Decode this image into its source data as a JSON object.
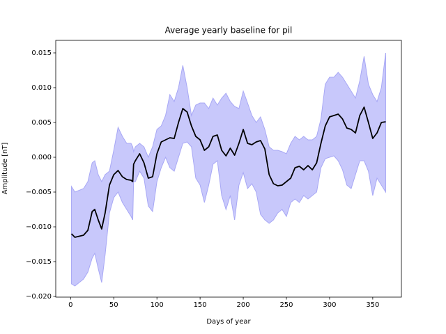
{
  "chart_data": {
    "type": "line_band",
    "title": "Average yearly baseline for pil",
    "xlabel": "Days of year",
    "ylabel": "Amplitude [nT]",
    "xlim": [
      -17.2,
      383.2
    ],
    "ylim": [
      -0.0201,
      0.0168
    ],
    "xticks": [
      0,
      50,
      100,
      150,
      200,
      250,
      300,
      350
    ],
    "yticks": [
      {
        "value": -0.02,
        "label": "−0.020"
      },
      {
        "value": -0.015,
        "label": "−0.015"
      },
      {
        "value": -0.01,
        "label": "−0.010"
      },
      {
        "value": -0.005,
        "label": "−0.005"
      },
      {
        "value": 0,
        "label": "0.000"
      },
      {
        "value": 0.005,
        "label": "0.005"
      },
      {
        "value": 0.01,
        "label": "0.010"
      },
      {
        "value": 0.015,
        "label": "0.015"
      }
    ],
    "x": [
      1,
      5,
      15,
      20,
      25,
      28,
      32,
      36,
      40,
      45,
      50,
      55,
      60,
      65,
      70,
      72,
      73,
      75,
      80,
      85,
      90,
      95,
      100,
      105,
      110,
      115,
      120,
      125,
      130,
      135,
      140,
      145,
      150,
      155,
      160,
      165,
      170,
      175,
      180,
      185,
      190,
      195,
      200,
      205,
      210,
      215,
      220,
      225,
      230,
      235,
      240,
      245,
      250,
      255,
      260,
      265,
      270,
      275,
      280,
      285,
      290,
      295,
      300,
      305,
      310,
      315,
      320,
      325,
      330,
      335,
      340,
      345,
      350,
      355,
      360,
      365
    ],
    "values": [
      -0.011,
      -0.0115,
      -0.0112,
      -0.0105,
      -0.0078,
      -0.0075,
      -0.009,
      -0.0103,
      -0.008,
      -0.004,
      -0.0025,
      -0.0019,
      -0.0028,
      -0.0032,
      -0.0033,
      -0.0035,
      -0.001,
      -0.0005,
      0.0005,
      -0.0008,
      -0.003,
      -0.0028,
      0.0005,
      0.0022,
      0.0025,
      0.0028,
      0.0027,
      0.005,
      0.007,
      0.0065,
      0.0045,
      0.003,
      0.0025,
      0.001,
      0.0015,
      0.003,
      0.0032,
      0.001,
      0.0002,
      0.0013,
      0.0003,
      0.002,
      0.004,
      0.002,
      0.0018,
      0.0022,
      0.0024,
      0.0012,
      -0.0025,
      -0.0038,
      -0.0041,
      -0.004,
      -0.0035,
      -0.003,
      -0.0015,
      -0.0013,
      -0.0018,
      -0.0012,
      -0.0018,
      -0.0008,
      0.002,
      0.0045,
      0.0058,
      0.006,
      0.0062,
      0.0055,
      0.0042,
      0.004,
      0.0035,
      0.006,
      0.0072,
      0.005,
      0.0027,
      0.0035,
      0.005,
      0.0051
    ],
    "color": "#000000",
    "band": {
      "color": "#c8c8fb",
      "edge_color": "#a8a8f5",
      "upper": [
        -0.0042,
        -0.005,
        -0.0045,
        -0.0035,
        -0.0008,
        -0.0005,
        -0.0025,
        -0.0035,
        -0.0025,
        -0.002,
        0.001,
        0.0043,
        0.003,
        0.002,
        0.002,
        0.0015,
        0.0008,
        0.0015,
        0.002,
        0.0015,
        0.0,
        0.0015,
        0.004,
        0.0045,
        0.006,
        0.009,
        0.008,
        0.01,
        0.0132,
        0.01,
        0.006,
        0.0075,
        0.0078,
        0.0078,
        0.007,
        0.0085,
        0.0075,
        0.0085,
        0.0092,
        0.008,
        0.0073,
        0.007,
        0.0095,
        0.0078,
        0.006,
        0.005,
        0.0058,
        0.004,
        0.0015,
        0.001,
        0.001,
        0.0008,
        0.0005,
        0.002,
        0.003,
        0.0025,
        0.003,
        0.0025,
        0.0025,
        0.003,
        0.0055,
        0.0105,
        0.0115,
        0.0115,
        0.0122,
        0.0115,
        0.0105,
        0.0095,
        0.0085,
        0.011,
        0.0145,
        0.0105,
        0.009,
        0.008,
        0.01,
        0.015
      ],
      "lower": [
        -0.0182,
        -0.0185,
        -0.0175,
        -0.0165,
        -0.0145,
        -0.0138,
        -0.016,
        -0.018,
        -0.014,
        -0.008,
        -0.0058,
        -0.005,
        -0.0065,
        -0.0075,
        -0.0085,
        -0.009,
        -0.0035,
        -0.0035,
        -0.002,
        -0.003,
        -0.007,
        -0.0078,
        -0.0035,
        -0.0015,
        0.0,
        -0.0015,
        -0.002,
        0.0,
        0.002,
        0.0022,
        0.0015,
        -0.003,
        -0.004,
        -0.0065,
        -0.004,
        -0.001,
        -0.0005,
        -0.0055,
        -0.0075,
        -0.0055,
        -0.009,
        -0.004,
        -0.0022,
        -0.0045,
        -0.0038,
        -0.005,
        -0.0082,
        -0.009,
        -0.0095,
        -0.009,
        -0.008,
        -0.0075,
        -0.0085,
        -0.0065,
        -0.006,
        -0.0065,
        -0.0055,
        -0.006,
        -0.0055,
        -0.005,
        -0.0015,
        -0.0002,
        0.0,
        0.0002,
        -0.0005,
        -0.0018,
        -0.004,
        -0.0045,
        -0.0025,
        -0.0005,
        -0.0005,
        -0.002,
        -0.0055,
        -0.003,
        -0.004,
        -0.005
      ]
    }
  }
}
